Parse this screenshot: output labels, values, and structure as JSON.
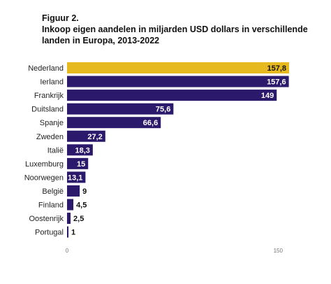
{
  "figure": {
    "label": "Figuur 2.",
    "title": "Inkoop eigen aandelen in miljarden USD dollars in verschillende landen in Europa, 2013-2022"
  },
  "colors": {
    "highlight": "#e6b91e",
    "bar": "#2b1a6b",
    "value_inside": "#ffffff",
    "value_outside": "#111111"
  },
  "chart_data": {
    "type": "bar",
    "orientation": "horizontal",
    "title": "Inkoop eigen aandelen in miljarden USD dollars in verschillende landen in Europa, 2013-2022",
    "categories": [
      "Nederland",
      "Ierland",
      "Frankrijk",
      "Duitsland",
      "Spanje",
      "Zweden",
      "Italië",
      "Luxemburg",
      "Noorwegen",
      "België",
      "Finland",
      "Oostenrijk",
      "Portugal"
    ],
    "values": [
      157.8,
      157.6,
      149,
      75.6,
      66.6,
      27.2,
      18.3,
      15,
      13.1,
      9,
      4.5,
      2.5,
      1
    ],
    "value_labels": [
      "157,8",
      "157,6",
      "149",
      "75,6",
      "66,6",
      "27,2",
      "18,3",
      "15",
      "13,1",
      "9",
      "4,5",
      "2,5",
      "1"
    ],
    "highlight_category": "Nederland",
    "xlim": [
      0,
      157.8
    ],
    "x_ticks": [
      0,
      150
    ],
    "x_tick_labels": [
      "0",
      "150"
    ],
    "xlabel": "",
    "ylabel": "",
    "grid": false,
    "legend": "none"
  }
}
